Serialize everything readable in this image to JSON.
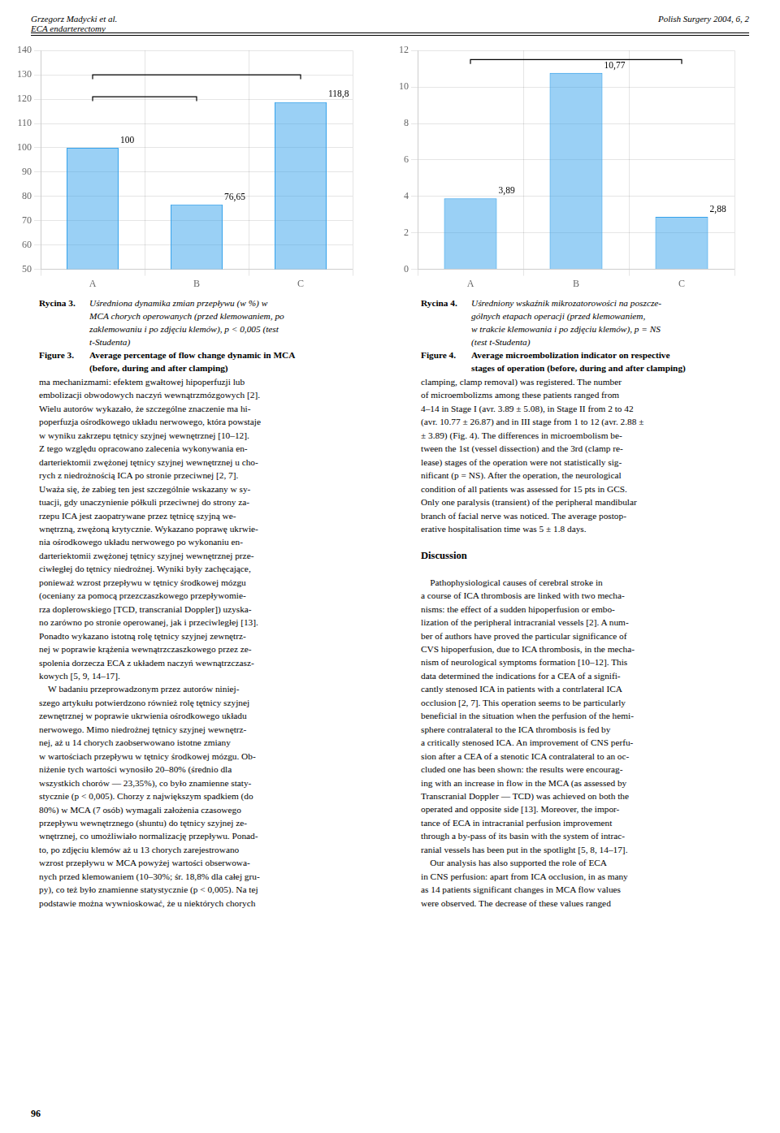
{
  "chart_data": [
    {
      "type": "bar",
      "categories": [
        "A",
        "B",
        "C"
      ],
      "values": [
        100,
        76.65,
        118.8
      ],
      "value_labels": [
        "100",
        "76,65",
        "118,8"
      ],
      "data_labels": true,
      "ylim": [
        50,
        140
      ],
      "yticks": [
        50,
        60,
        70,
        80,
        90,
        100,
        110,
        120,
        130,
        140
      ],
      "grid": true,
      "brackets": [
        {
          "from": "A",
          "to": "C",
          "y": 130
        },
        {
          "from": "A",
          "to": "B",
          "y": 121
        }
      ],
      "annotations": [
        {
          "label": "Rycina 3.",
          "text": [
            "Uśredniona dynamika zmian przepływu (w %) w",
            "MCA chorych operowanych (przed klemowaniem, po",
            "zaklemowaniu i po zdjęciu klemów), p < 0,005 (test",
            "t-Studenta)"
          ]
        },
        {
          "label": "Figure 3.",
          "text": [
            "Average percentage of flow change dynamic in MCA",
            "(before, during and after clamping)"
          ]
        }
      ]
    },
    {
      "type": "bar",
      "categories": [
        "A",
        "B",
        "C"
      ],
      "values": [
        3.89,
        10.77,
        2.88
      ],
      "value_labels": [
        "3,89",
        "10,77",
        "2,88"
      ],
      "data_labels": true,
      "ylim": [
        0,
        12
      ],
      "yticks": [
        0,
        2,
        4,
        6,
        8,
        10,
        12
      ],
      "grid": true,
      "brackets": [
        {
          "from": "A",
          "to": "C",
          "y": 11.5
        }
      ],
      "annotations": [
        {
          "label": "Rycina 4.",
          "text": [
            "Uśredniony wskaźnik mikrozatorowości na poszcze-",
            "gólnych etapach operacji (przed klemowaniem,",
            "w trakcie klemowania i po zdjęciu klemów), p = NS",
            "(test t-Studenta)"
          ]
        },
        {
          "label": "Figure 4.",
          "text": [
            "Average microembolization indicator on respective",
            "stages of operation (before, during and after clamping)"
          ]
        }
      ]
    }
  ],
  "annotations": [
    {
      "text": [
        "Grzegorz Madycki et al.",
        "ECA endarterectomy"
      ]
    },
    {
      "text": [
        "Polish Surgery 2004, 6, 2"
      ]
    },
    {
      "blocks": [
        {
          "text": [
            "ma mechanizmami: efektem gwałtowej hipoperfuzji lub",
            "embolizacji obwodowych naczyń wewnątrzmózgowych [2].",
            "Wielu autorów wykazało, że szczególne znaczenie ma hi-",
            "poperfuzja ośrodkowego układu nerwowego, która powstaje",
            "w wyniku zakrzepu tętnicy szyjnej wewnętrznej [10–12].",
            "Z tego względu opracowano zalecenia wykonywania en-",
            "darteriektomii zwężonej tętnicy szyjnej wewnętrznej u cho-",
            "rych z niedrożnością ICA po stronie przeciwnej [2, 7].",
            "Uważa się, że zabieg ten jest szczególnie wskazany w sy-",
            "tuacji, gdy unaczynienie półkuli przeciwnej do strony za-",
            "rzepu ICA jest zaopatrywane przez tętnicę szyjną we-",
            "wnętrzną, zwężoną krytycznie. Wykazano poprawę ukrwie-",
            "nia ośrodkowego układu nerwowego po wykonaniu en-",
            "darteriektomii zwężonej tętnicy szyjnej wewnętrznej prze-",
            "ciwłegłej do tętnicy niedrożnej. Wyniki były zachęcające,",
            "ponieważ wzrost przepływu w tętnicy środkowej mózgu",
            "(oceniany za pomocą przezczaszkowego przepływomie-",
            "rza doplerowskiego [TCD, transcranial Doppler]) uzyska-",
            "no zarówno po stronie operowanej, jak i przeciwległej [13].",
            "Ponadto wykazano istotną rolę tętnicy szyjnej zewnętrz-",
            "nej w poprawie krążenia wewnątrzczaszkowego przez ze-",
            "spolenia dorzecza ECA z układem naczyń wewnątrzczasz-",
            "kowych [5, 9, 14–17].",
            "    W badaniu przeprowadzonym przez autorów niniej-",
            "szego artykułu potwierdzono również rolę tętnicy szyjnej",
            "zewnętrznej w poprawie ukrwienia ośrodkowego układu",
            "nerwowego. Mimo niedrożnej tętnicy szyjnej wewnętrz-",
            "nej, aż u 14 chorych zaobserwowano istotne zmiany",
            "w wartościach przepływu w tętnicy środkowej mózgu. Ob-",
            "niżenie tych wartości wynosiło 20–80% (średnio dla",
            "wszystkich chorów — 23,35%), co było znamienne staty-",
            "stycznie (p < 0,005). Chorzy z największym spadkiem (do",
            "80%) w MCA (7 osób) wymagali założenia czasowego",
            "przepływu wewnętrznego (shuntu) do tętnicy szyjnej ze-",
            "wnętrznej, co umożliwiało normalizację przepływu. Ponad-",
            "to, po zdjęciu klemów aż u 13 chorych zarejestrowano",
            "wzrost przepływu w MCA powyżej wartości obserwowa-",
            "nych przed klemowaniem (10–30%; śr. 18,8% dla całej gru-",
            "py), co też było znamienne statystycznie (p < 0,005). Na tej",
            "podstawie można wywnioskować, że u niektórych chorych"
          ]
        }
      ]
    },
    {
      "blocks": [
        {
          "text": [
            "clamping, clamp removal) was registered. The number",
            "of microembolizms among these patients ranged from",
            "4–14 in Stage I (avr. 3.89 ± 5.08), in Stage II from 2 to 42",
            "(avr. 10.77 ± 26.87) and in III stage from 1 to 12 (avr. 2.88 ±",
            "± 3.89) (Fig. 4). The differences in microembolism be-",
            "tween the 1st (vessel dissection) and the 3rd (clamp re-",
            "lease) stages of the operation were not statistically sig-",
            "nificant (p = NS). After the operation, the neurological",
            "condition of all patients was assessed for 15 pts in GCS.",
            "Only one paralysis (transient) of the peripheral mandibular",
            "branch of facial nerve was noticed. The average postop-",
            "erative hospitalisation time was 5 ± 1.8 days."
          ]
        },
        {
          "heading": "Discussion"
        },
        {
          "text": [
            "    Pathophysiological causes of cerebral stroke in",
            "a course of ICA thrombosis are linked with two mecha-",
            "nisms: the effect of a sudden hipoperfusion or embo-",
            "lization of the peripheral intracranial vessels [2]. A num-",
            "ber of authors have proved the particular significance of",
            "CVS hipoperfusion, due to ICA thrombosis, in the mecha-",
            "nism of neurological symptoms formation [10–12]. This",
            "data determined the indications for a CEA of a signifi-",
            "cantly stenosed ICA in patients with a contrlateral ICA",
            "occlusion [2, 7]. This operation seems to be particularly",
            "beneficial in the situation when the perfusion of the hemi-",
            "sphere contralateral to the ICA thrombosis is fed by",
            "a critically stenosed ICA. An improvement of CNS perfu-",
            "sion after a CEA of a stenotic ICA contralateral to an oc-",
            "cluded one has been shown: the results were encourag-",
            "ing with an increase in flow in the MCA (as assessed by",
            "Transcranial Doppler — TCD) was achieved on both the",
            "operated and opposite side [13]. Moreover, the impor-",
            "tance of ECA in intracranial perfusion improvement",
            "through a by-pass of its basin with the system of intrac-",
            "ranial vessels has been put in the spotlight [5, 8, 14–17].",
            "    Our analysis has also supported the role of ECA",
            "in CNS perfusion: apart from ICA occlusion, in as many",
            "as 14 patients significant changes in MCA flow values",
            "were observed. The decrease of these values ranged"
          ]
        }
      ]
    },
    {
      "text": [
        "96"
      ]
    }
  ]
}
